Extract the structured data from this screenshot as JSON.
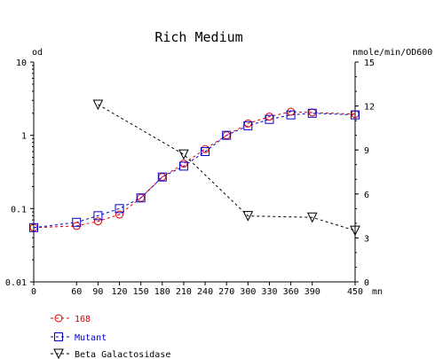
{
  "chart_data": {
    "type": "line",
    "title": "Rich Medium",
    "x_unit": "mn",
    "left_unit": "od",
    "right_unit": "nmole/min/OD600",
    "x_ticks": [
      0,
      60,
      90,
      120,
      150,
      180,
      210,
      240,
      270,
      300,
      330,
      360,
      390,
      450
    ],
    "x_range": [
      0,
      450
    ],
    "left_axis": {
      "scale": "log",
      "range": [
        0.01,
        10
      ],
      "tick_labels": [
        "10",
        "1",
        "0.1",
        "0.01"
      ],
      "tick_values": [
        10,
        1,
        0.1,
        0.01
      ]
    },
    "right_axis": {
      "scale": "linear",
      "range": [
        0,
        15
      ],
      "ticks": [
        0,
        3,
        6,
        9,
        12,
        15
      ]
    },
    "legend_position": "bottom-left",
    "series": [
      {
        "name": "168",
        "axis": "left",
        "color": "#dd0000",
        "marker": "circle",
        "line": "dashed",
        "x": [
          0,
          60,
          90,
          120,
          150,
          180,
          210,
          240,
          270,
          300,
          330,
          360,
          390,
          450
        ],
        "y": [
          0.055,
          0.058,
          0.067,
          0.083,
          0.14,
          0.27,
          0.41,
          0.65,
          1.0,
          1.45,
          1.8,
          2.1,
          2.05,
          1.95
        ]
      },
      {
        "name": "Mutant",
        "axis": "left",
        "color": "#0000cc",
        "marker": "square",
        "line": "dashed",
        "x": [
          0,
          60,
          90,
          120,
          150,
          180,
          210,
          240,
          270,
          300,
          330,
          360,
          390,
          450
        ],
        "y": [
          0.055,
          0.065,
          0.08,
          0.1,
          0.14,
          0.27,
          0.38,
          0.6,
          1.0,
          1.35,
          1.65,
          1.9,
          2.0,
          1.9
        ]
      },
      {
        "name": "Beta Galactosidase",
        "axis": "right",
        "color": "#000000",
        "marker": "triangle-down",
        "line": "dashed",
        "x": [
          90,
          210,
          300,
          390,
          450
        ],
        "y": [
          12.1,
          8.7,
          4.5,
          4.4,
          3.5
        ]
      }
    ]
  }
}
